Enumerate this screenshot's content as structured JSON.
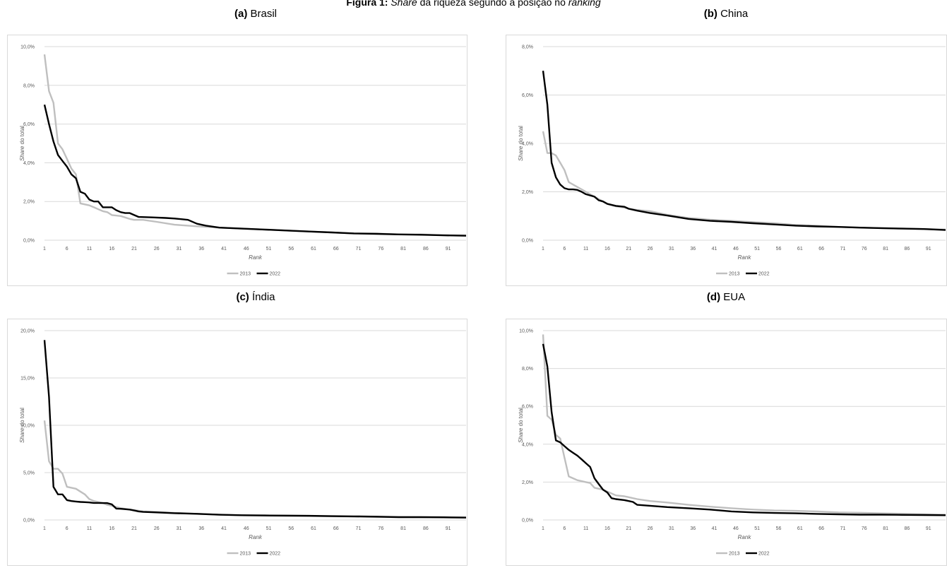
{
  "figure": {
    "title_bold": "Figura 1:",
    "title_italic_1": "Share",
    "title_mid": " da riqueza segundo a posição no ",
    "title_italic_2": "ranking"
  },
  "legend": {
    "series_2013": "2013",
    "series_2022": "2022"
  },
  "colors": {
    "series_2013": "#bfbfbf",
    "series_2022": "#000000",
    "grid": "#d9d9d9",
    "border": "#d9d9d9"
  },
  "chart_data": [
    {
      "type": "line",
      "panel_letter": "(a)",
      "panel_name": "Brasil",
      "xlabel": "Rank",
      "ylabel_italic": "Share",
      "ylabel_rest": " do total",
      "ylim": [
        0,
        0.1
      ],
      "y_ticks": [
        "0,0%",
        "2,0%",
        "4,0%",
        "6,0%",
        "8,0%",
        "10,0%"
      ],
      "x_ticks": [
        "1",
        "6",
        "11",
        "16",
        "21",
        "26",
        "31",
        "36",
        "41",
        "46",
        "51",
        "56",
        "61",
        "66",
        "71",
        "76",
        "81",
        "86",
        "91"
      ],
      "x_max": 95,
      "series": [
        {
          "name": "2013",
          "x": [
            1,
            2,
            3,
            4,
            5,
            6,
            7,
            8,
            9,
            10,
            11,
            12,
            13,
            14,
            15,
            16,
            18,
            20,
            21,
            23,
            26,
            30,
            33,
            36,
            40,
            45,
            50,
            55,
            60,
            65,
            70,
            75,
            80,
            85,
            90,
            95
          ],
          "values": [
            0.096,
            0.077,
            0.071,
            0.05,
            0.047,
            0.042,
            0.037,
            0.034,
            0.019,
            0.0185,
            0.018,
            0.017,
            0.016,
            0.015,
            0.0145,
            0.013,
            0.0125,
            0.011,
            0.0105,
            0.0105,
            0.0095,
            0.008,
            0.0075,
            0.007,
            0.0065,
            0.006,
            0.0055,
            0.005,
            0.0045,
            0.004,
            0.0035,
            0.0035,
            0.003,
            0.003,
            0.0025,
            0.0025
          ]
        },
        {
          "name": "2022",
          "x": [
            1,
            2,
            3,
            4,
            5,
            6,
            7,
            8,
            9,
            10,
            11,
            12,
            13,
            14,
            15,
            16,
            17,
            18,
            19,
            20,
            21,
            22,
            25,
            28,
            30,
            33,
            35,
            37,
            40,
            45,
            50,
            55,
            60,
            65,
            70,
            75,
            80,
            85,
            90,
            95
          ],
          "values": [
            0.07,
            0.06,
            0.051,
            0.044,
            0.041,
            0.038,
            0.034,
            0.032,
            0.025,
            0.024,
            0.021,
            0.02,
            0.02,
            0.017,
            0.017,
            0.017,
            0.0155,
            0.0145,
            0.014,
            0.014,
            0.013,
            0.012,
            0.0118,
            0.0115,
            0.0112,
            0.0105,
            0.0085,
            0.0075,
            0.0065,
            0.006,
            0.0055,
            0.005,
            0.0045,
            0.004,
            0.0035,
            0.0033,
            0.003,
            0.0028,
            0.0025,
            0.0023
          ]
        }
      ]
    },
    {
      "type": "line",
      "panel_letter": "(b)",
      "panel_name": "China",
      "xlabel": "Rank",
      "ylabel_italic": "Share",
      "ylabel_rest": " do total",
      "ylim": [
        0,
        0.08
      ],
      "y_ticks": [
        "0,0%",
        "2,0%",
        "4,0%",
        "6,0%",
        "8,0%"
      ],
      "x_ticks": [
        "1",
        "6",
        "11",
        "16",
        "21",
        "26",
        "31",
        "36",
        "41",
        "46",
        "51",
        "56",
        "61",
        "66",
        "71",
        "76",
        "81",
        "86",
        "91"
      ],
      "x_max": 95,
      "series": [
        {
          "name": "2013",
          "x": [
            1,
            2,
            3,
            4,
            5,
            6,
            7,
            8,
            9,
            10,
            11,
            12,
            13,
            14,
            15,
            16,
            18,
            20,
            21,
            23,
            26,
            30,
            35,
            40,
            45,
            50,
            55,
            60,
            65,
            70,
            75,
            80,
            85,
            90,
            95
          ],
          "values": [
            0.045,
            0.036,
            0.036,
            0.035,
            0.032,
            0.029,
            0.024,
            0.023,
            0.022,
            0.021,
            0.02,
            0.019,
            0.018,
            0.017,
            0.016,
            0.015,
            0.014,
            0.0135,
            0.013,
            0.0125,
            0.012,
            0.0105,
            0.0092,
            0.0085,
            0.008,
            0.0075,
            0.007,
            0.0063,
            0.006,
            0.0055,
            0.0052,
            0.005,
            0.0048,
            0.0046,
            0.0044
          ]
        },
        {
          "name": "2022",
          "x": [
            1,
            2,
            3,
            4,
            5,
            6,
            7,
            8,
            9,
            10,
            11,
            12,
            13,
            14,
            15,
            16,
            18,
            20,
            21,
            23,
            26,
            30,
            35,
            40,
            45,
            50,
            55,
            60,
            65,
            70,
            75,
            80,
            85,
            90,
            95
          ],
          "values": [
            0.07,
            0.056,
            0.032,
            0.026,
            0.023,
            0.0215,
            0.021,
            0.021,
            0.0208,
            0.02,
            0.019,
            0.0185,
            0.018,
            0.0165,
            0.016,
            0.015,
            0.0142,
            0.0138,
            0.013,
            0.0122,
            0.0112,
            0.0102,
            0.0088,
            0.008,
            0.0076,
            0.007,
            0.0065,
            0.006,
            0.0057,
            0.0055,
            0.0052,
            0.005,
            0.0048,
            0.0046,
            0.0042
          ]
        }
      ]
    },
    {
      "type": "line",
      "panel_letter": "(c)",
      "panel_name": "Índia",
      "xlabel": "Rank",
      "ylabel_italic": "Share",
      "ylabel_rest": " do total",
      "ylim": [
        0,
        0.2
      ],
      "y_ticks": [
        "0,0%",
        "5,0%",
        "10,0%",
        "15,0%",
        "20,0%"
      ],
      "x_ticks": [
        "1",
        "6",
        "11",
        "16",
        "21",
        "26",
        "31",
        "36",
        "41",
        "46",
        "51",
        "56",
        "61",
        "66",
        "71",
        "76",
        "81",
        "86",
        "91"
      ],
      "x_max": 95,
      "series": [
        {
          "name": "2013",
          "x": [
            1,
            2,
            3,
            4,
            5,
            6,
            7,
            8,
            9,
            10,
            11,
            12,
            13,
            14,
            15,
            16,
            18,
            20,
            21,
            23,
            26,
            30,
            35,
            40,
            45,
            50,
            55,
            60,
            65,
            70,
            75,
            80,
            85,
            90,
            95
          ],
          "values": [
            0.105,
            0.062,
            0.054,
            0.054,
            0.049,
            0.035,
            0.034,
            0.033,
            0.03,
            0.027,
            0.022,
            0.02,
            0.019,
            0.018,
            0.016,
            0.015,
            0.0125,
            0.011,
            0.0105,
            0.009,
            0.0085,
            0.0075,
            0.0065,
            0.0055,
            0.005,
            0.0045,
            0.0042,
            0.004,
            0.0038,
            0.0035,
            0.003,
            0.003,
            0.0028,
            0.0025,
            0.0022
          ]
        },
        {
          "name": "2022",
          "x": [
            1,
            2,
            3,
            4,
            5,
            6,
            7,
            8,
            9,
            10,
            11,
            12,
            13,
            14,
            15,
            16,
            17,
            18,
            20,
            21,
            22,
            23,
            26,
            30,
            35,
            40,
            45,
            50,
            55,
            60,
            65,
            70,
            75,
            80,
            85,
            90,
            95
          ],
          "values": [
            0.19,
            0.13,
            0.035,
            0.027,
            0.027,
            0.021,
            0.02,
            0.0195,
            0.019,
            0.0188,
            0.0185,
            0.018,
            0.018,
            0.0178,
            0.0178,
            0.0165,
            0.012,
            0.0118,
            0.011,
            0.01,
            0.009,
            0.0085,
            0.008,
            0.0072,
            0.0065,
            0.0055,
            0.005,
            0.0048,
            0.0046,
            0.0044,
            0.004,
            0.0038,
            0.0035,
            0.003,
            0.003,
            0.0028,
            0.0025
          ]
        }
      ]
    },
    {
      "type": "line",
      "panel_letter": "(d)",
      "panel_name": "EUA",
      "xlabel": "Rank",
      "ylabel_italic": "Share",
      "ylabel_rest": " do total",
      "ylim": [
        0,
        0.1
      ],
      "y_ticks": [
        "0,0%",
        "2,0%",
        "4,0%",
        "6,0%",
        "8,0%",
        "10,0%"
      ],
      "x_ticks": [
        "1",
        "6",
        "11",
        "16",
        "21",
        "26",
        "31",
        "36",
        "41",
        "46",
        "51",
        "56",
        "61",
        "66",
        "71",
        "76",
        "81",
        "86",
        "91"
      ],
      "x_max": 95,
      "series": [
        {
          "name": "2013",
          "x": [
            1,
            2,
            3,
            4,
            5,
            6,
            7,
            8,
            9,
            10,
            11,
            12,
            13,
            14,
            15,
            16,
            18,
            20,
            21,
            23,
            26,
            30,
            35,
            40,
            45,
            50,
            55,
            60,
            65,
            70,
            75,
            80,
            85,
            90,
            95
          ],
          "values": [
            0.098,
            0.055,
            0.053,
            0.045,
            0.043,
            0.033,
            0.023,
            0.022,
            0.021,
            0.0205,
            0.02,
            0.0195,
            0.017,
            0.0165,
            0.016,
            0.015,
            0.013,
            0.0125,
            0.012,
            0.011,
            0.01,
            0.0092,
            0.008,
            0.007,
            0.0062,
            0.0055,
            0.005,
            0.0048,
            0.0045,
            0.004,
            0.0038,
            0.0035,
            0.0033,
            0.003,
            0.0028
          ]
        },
        {
          "name": "2022",
          "x": [
            1,
            2,
            3,
            4,
            5,
            6,
            7,
            8,
            9,
            10,
            11,
            12,
            13,
            14,
            15,
            16,
            17,
            18,
            20,
            21,
            22,
            23,
            26,
            30,
            35,
            40,
            45,
            50,
            55,
            60,
            65,
            70,
            75,
            80,
            85,
            90,
            95
          ],
          "values": [
            0.093,
            0.081,
            0.057,
            0.042,
            0.041,
            0.039,
            0.037,
            0.0355,
            0.034,
            0.032,
            0.03,
            0.028,
            0.022,
            0.019,
            0.016,
            0.0145,
            0.0115,
            0.011,
            0.0105,
            0.01,
            0.0095,
            0.008,
            0.0075,
            0.0068,
            0.0062,
            0.0055,
            0.0045,
            0.004,
            0.0037,
            0.0035,
            0.0032,
            0.003,
            0.0028,
            0.0028,
            0.0027,
            0.0026,
            0.0025
          ]
        }
      ]
    }
  ]
}
